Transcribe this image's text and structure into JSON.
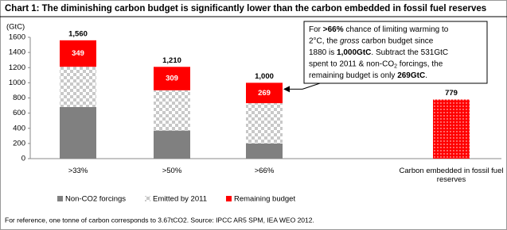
{
  "chart_data": {
    "type": "stacked_bar",
    "title": "Chart 1: The diminishing carbon budget is significantly lower than the carbon embedded in fossil fuel reserves",
    "y_label": "(GtC)",
    "categories": [
      ">33%",
      ">50%",
      ">66%",
      "Carbon embedded in fossil fuel reserves"
    ],
    "series": [
      {
        "name": "Non-CO2 forcings",
        "color": "#808080",
        "values": [
          680,
          370,
          200,
          null
        ]
      },
      {
        "name": "Emitted by 2011",
        "color": "#c8c8c8",
        "pattern": "checker",
        "values": [
          531,
          531,
          531,
          null
        ]
      },
      {
        "name": "Remaining budget",
        "color": "#ff0000",
        "values": [
          349,
          309,
          269,
          null
        ],
        "show_value_labels": true
      },
      {
        "color": "#ff0000",
        "pattern": "dots",
        "values": [
          null,
          null,
          null,
          779
        ]
      }
    ],
    "totals": [
      1560,
      1210,
      1000,
      779
    ],
    "total_labels": [
      "1,560",
      "1,210",
      "1,000",
      "779"
    ],
    "ylim": [
      0,
      1600
    ],
    "yticks": [
      0,
      200,
      400,
      600,
      800,
      1000,
      1200,
      1400,
      1600
    ],
    "annotation": {
      "target_category": 2,
      "lines": [
        [
          {
            "text": "For "
          },
          {
            "text": ">66%",
            "style": "bold"
          },
          {
            "text": " chance of limiting warming to"
          }
        ],
        [
          {
            "text": "2°C, the "
          },
          {
            "text": "gross",
            "style": "italic"
          },
          {
            "text": " carbon budget since"
          }
        ],
        [
          {
            "text": "1880 is "
          },
          {
            "text": "1,000GtC",
            "style": "bold"
          },
          {
            "text": ".  Subtract the 531GtC"
          }
        ],
        [
          {
            "text": "spent to 2011 & non-CO"
          },
          {
            "text": "2",
            "style": "sub"
          },
          {
            "text": " forcings, the"
          }
        ],
        [
          {
            "text": "remaining budget is only "
          },
          {
            "text": "269GtC",
            "style": "bold"
          },
          {
            "text": "."
          }
        ]
      ]
    },
    "footnote": "For reference, one tonne of carbon corresponds to 3.67tCO2.    Source: IPCC AR5 SPM, IEA WEO 2012."
  }
}
